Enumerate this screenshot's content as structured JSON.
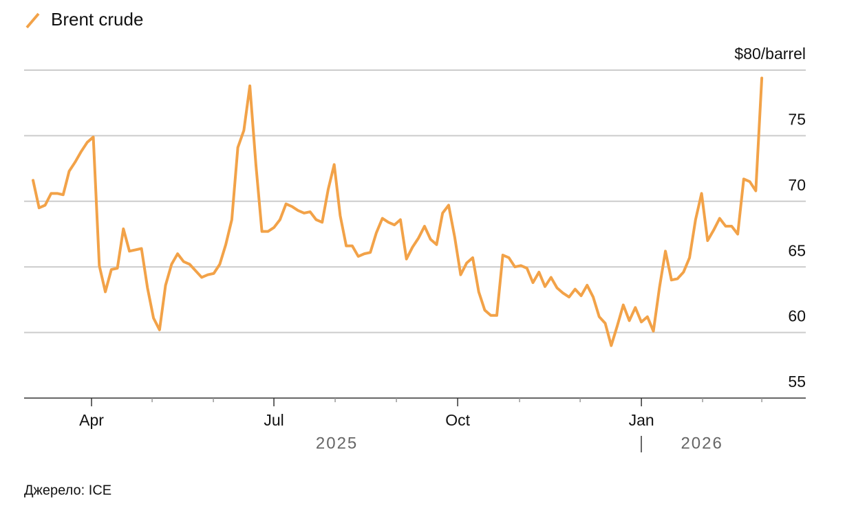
{
  "chart_data": {
    "type": "line",
    "series": [
      {
        "name": "Brent crude",
        "color": "#f2a248",
        "values": [
          71.6,
          69.5,
          69.7,
          70.6,
          70.6,
          70.5,
          72.3,
          73.0,
          73.8,
          74.5,
          74.9,
          65.1,
          63.1,
          64.8,
          64.9,
          67.9,
          66.2,
          66.3,
          66.4,
          63.4,
          61.1,
          60.2,
          63.6,
          65.2,
          66.0,
          65.4,
          65.2,
          64.7,
          64.2,
          64.4,
          64.5,
          65.2,
          66.7,
          68.6,
          74.1,
          75.4,
          78.8,
          72.8,
          67.7,
          67.7,
          68.0,
          68.6,
          69.8,
          69.6,
          69.3,
          69.1,
          69.2,
          68.6,
          68.4,
          70.9,
          72.8,
          68.9,
          66.6,
          66.6,
          65.8,
          66.0,
          66.1,
          67.6,
          68.7,
          68.4,
          68.2,
          68.6,
          65.6,
          66.5,
          67.2,
          68.1,
          67.1,
          66.7,
          69.1,
          69.7,
          67.3,
          64.4,
          65.3,
          65.7,
          63.1,
          61.7,
          61.3,
          61.3,
          65.9,
          65.7,
          65.0,
          65.1,
          64.9,
          63.8,
          64.6,
          63.5,
          64.2,
          63.4,
          63.0,
          62.7,
          63.3,
          62.8,
          63.6,
          62.7,
          61.2,
          60.7,
          59.0,
          60.5,
          62.1,
          60.9,
          61.9,
          60.8,
          61.2,
          60.1,
          63.4,
          66.2,
          64.0,
          64.1,
          64.6,
          65.7,
          68.6,
          70.6,
          67.0,
          67.8,
          68.7,
          68.1,
          68.1,
          67.5,
          71.7,
          71.5,
          70.8,
          79.4
        ]
      }
    ],
    "xlim": [
      -1.49,
      128.3
    ],
    "xticks": [
      {
        "value": 9.71,
        "label": "Apr"
      },
      {
        "value": 39.99,
        "label": "Jul"
      },
      {
        "value": 70.5,
        "label": "Oct"
      },
      {
        "value": 101.01,
        "label": "Jan"
      }
    ],
    "xminorticks": [
      19.77,
      29.94,
      50.16,
      60.33,
      80.78,
      90.84,
      111.17,
      121.0
    ],
    "years": [
      "2025",
      "2026"
    ],
    "ylim": [
      55,
      80
    ],
    "yticks": [
      55,
      60,
      65,
      70,
      75,
      {
        "value": 80,
        "label": "$80/barrel"
      }
    ],
    "grid": true,
    "source": "Джерело: ICE"
  }
}
